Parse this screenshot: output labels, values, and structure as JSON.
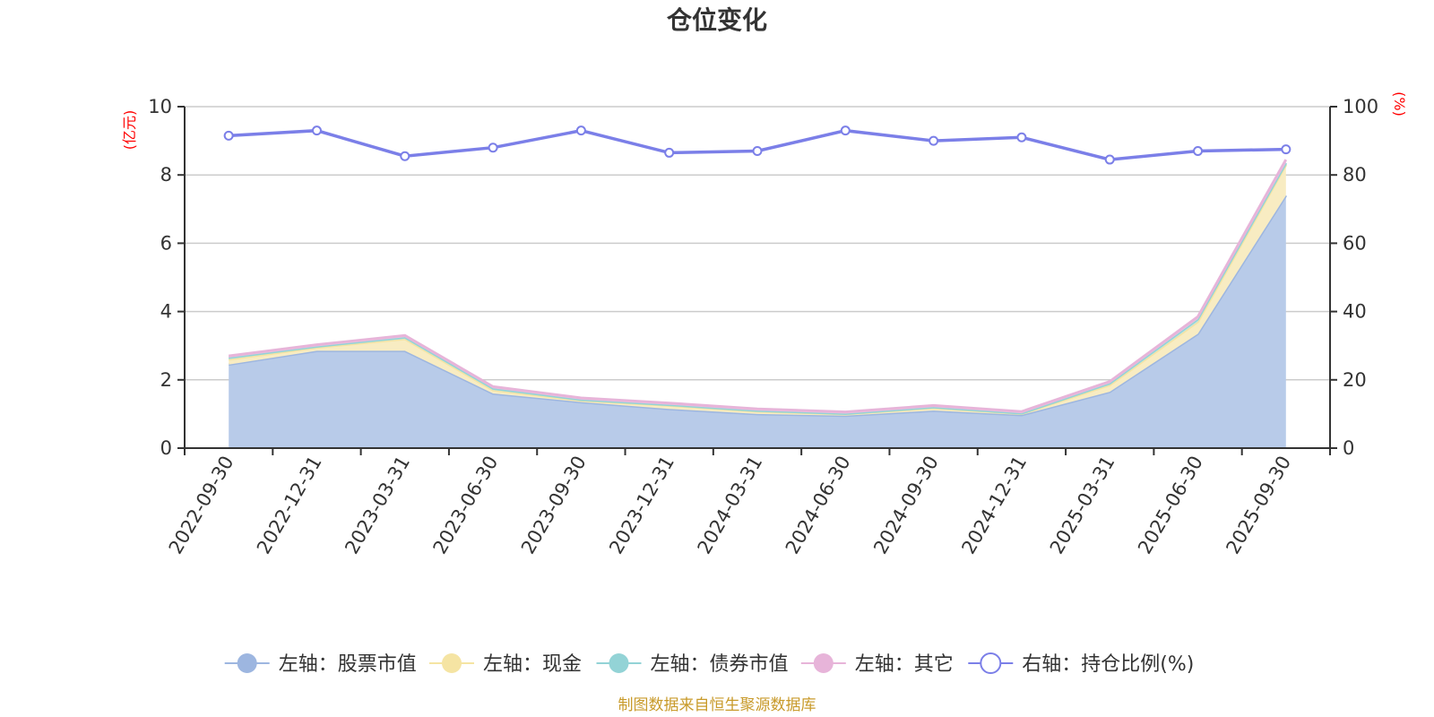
{
  "chart_data": {
    "type": "area",
    "title": "仓位变化",
    "left_unit": "(亿元)",
    "right_unit": "(%)",
    "categories": [
      "2022-09-30",
      "2022-12-31",
      "2023-03-31",
      "2023-06-30",
      "2023-09-30",
      "2023-12-31",
      "2024-03-31",
      "2024-06-30",
      "2024-09-30",
      "2024-12-31",
      "2025-03-31",
      "2025-06-30",
      "2025-09-30"
    ],
    "left_axis": {
      "min": 0,
      "max": 10,
      "ticks": [
        "0",
        "2",
        "4",
        "6",
        "8",
        "10"
      ]
    },
    "right_axis": {
      "min": 0,
      "max": 100,
      "ticks": [
        "0",
        "20",
        "40",
        "60",
        "80",
        "100"
      ]
    },
    "stacked_series": [
      {
        "name": "左轴：股票市值",
        "color": "#9db6e0",
        "fill": "#b8cbe9",
        "values": [
          2.45,
          2.85,
          2.85,
          1.6,
          1.35,
          1.15,
          1.0,
          0.95,
          1.1,
          0.97,
          1.65,
          3.35,
          7.4
        ]
      },
      {
        "name": "左轴：现金",
        "color": "#f5e4a3",
        "fill": "#f8ecc2",
        "values": [
          0.15,
          0.1,
          0.35,
          0.1,
          0.05,
          0.1,
          0.08,
          0.05,
          0.08,
          0.04,
          0.2,
          0.35,
          0.9
        ]
      },
      {
        "name": "左轴：债券市值",
        "color": "#93d3d6",
        "fill": "#bfe3e3",
        "values": [
          0.05,
          0.03,
          0.05,
          0.05,
          0.02,
          0.02,
          0.02,
          0.01,
          0.02,
          0.01,
          0.05,
          0.08,
          0.05
        ]
      },
      {
        "name": "左轴：其它",
        "color": "#e7b4d9",
        "fill": "#eec6e4",
        "values": [
          0.05,
          0.05,
          0.05,
          0.05,
          0.05,
          0.05,
          0.05,
          0.05,
          0.05,
          0.05,
          0.05,
          0.07,
          0.1
        ]
      }
    ],
    "line_series": {
      "name": "右轴：持仓比例(%)",
      "color": "#7b7fe8",
      "values": [
        91.5,
        93,
        85.5,
        88,
        93,
        86.5,
        87,
        93,
        90,
        91,
        84.5,
        87,
        87.5
      ]
    }
  },
  "source_text": "制图数据来自恒生聚源数据库"
}
